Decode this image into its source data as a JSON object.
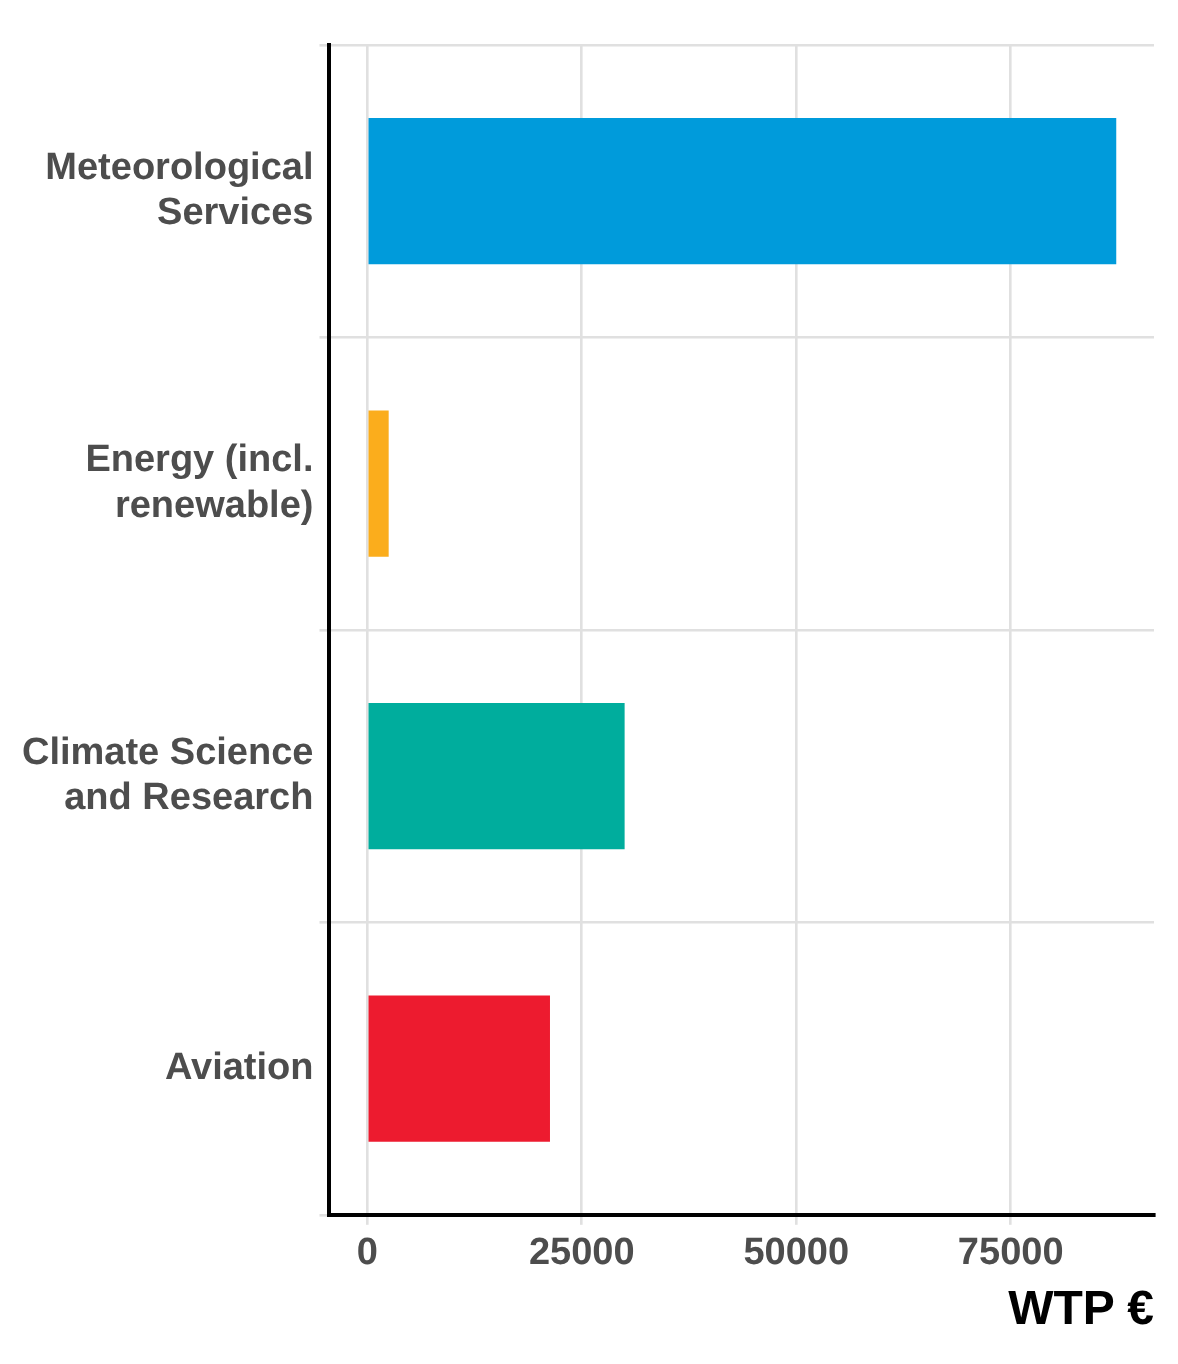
{
  "chart_data": {
    "type": "bar",
    "orientation": "horizontal",
    "xlabel": "WTP €",
    "categories": [
      "Meteorological Services",
      "Energy (incl. renewable)",
      "Climate Science and Research",
      "Aviation"
    ],
    "values": [
      87300,
      2500,
      30000,
      21300
    ],
    "colors": [
      "#009bdb",
      "#fbad1c",
      "#00ad9d",
      "#ed1b2f"
    ],
    "xlim": [
      -4400,
      91700
    ],
    "xticks": [
      0,
      25000,
      50000,
      75000
    ],
    "grid": true
  }
}
